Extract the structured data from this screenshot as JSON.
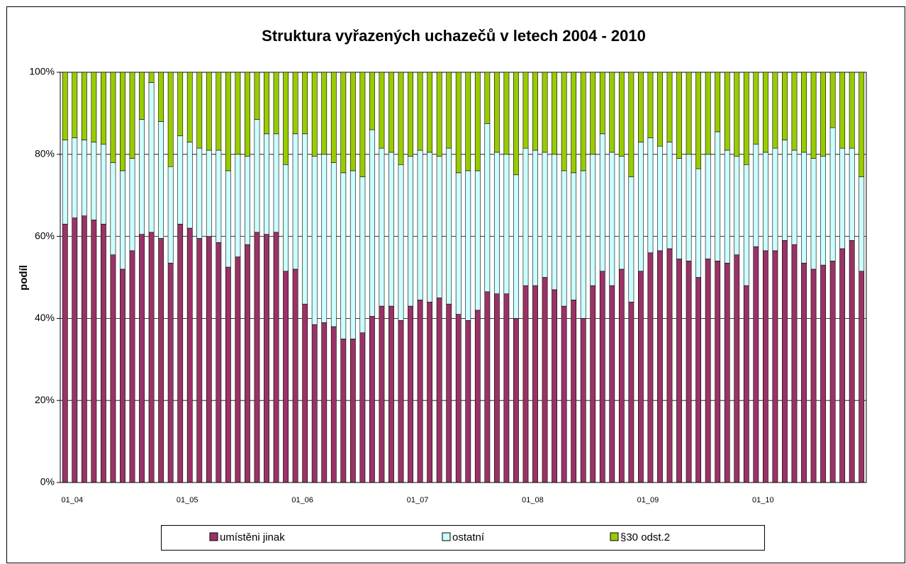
{
  "chart_data": {
    "type": "stacked_bar",
    "title": "Struktura vyřazených uchazečů v letech 2004 - 2010",
    "y_label": "podíl",
    "categories": [
      "01_04",
      null,
      null,
      null,
      null,
      null,
      null,
      null,
      null,
      null,
      null,
      null,
      "01_05",
      null,
      null,
      null,
      null,
      null,
      null,
      null,
      null,
      null,
      null,
      null,
      "01_06",
      null,
      null,
      null,
      null,
      null,
      null,
      null,
      null,
      null,
      null,
      null,
      "01_07",
      null,
      null,
      null,
      null,
      null,
      null,
      null,
      null,
      null,
      null,
      null,
      "01_08",
      null,
      null,
      null,
      null,
      null,
      null,
      null,
      null,
      null,
      null,
      null,
      "01_09",
      null,
      null,
      null,
      null,
      null,
      null,
      null,
      null,
      null,
      null,
      null,
      "01_10",
      null,
      null,
      null,
      null,
      null,
      null,
      null,
      null,
      null,
      null,
      null
    ],
    "series": [
      {
        "name": "umístěni jinak",
        "color": "#993366",
        "values": [
          63,
          64.5,
          65,
          64,
          63,
          55.5,
          52,
          56.5,
          60.5,
          61,
          59.5,
          53.5,
          63,
          62,
          59.5,
          60,
          58.5,
          52.5,
          55,
          58,
          61,
          60.5,
          61,
          51.5,
          52,
          43.5,
          38.5,
          39,
          38,
          35,
          35,
          36.5,
          40.5,
          43,
          43,
          39.5,
          43,
          44.5,
          44,
          45,
          43.5,
          41,
          39.5,
          42,
          46.5,
          46,
          46,
          40,
          48,
          48,
          50,
          47,
          43,
          44.5,
          40,
          48,
          51.5,
          48,
          52,
          44,
          51.5,
          56,
          56.5,
          57,
          54.5,
          54,
          50,
          54.5,
          54,
          53.5,
          55.5,
          48,
          57.5,
          56.5,
          56.5,
          59,
          58,
          53.5,
          52,
          53,
          54,
          57,
          59,
          51.5
        ]
      },
      {
        "name": "ostatní",
        "color": "#ccffff",
        "values": [
          20.5,
          19.5,
          18.5,
          19,
          19.5,
          22.5,
          24,
          22.5,
          28,
          36.5,
          28.5,
          23.5,
          21.5,
          21,
          22,
          21,
          22.5,
          23.5,
          25,
          21.5,
          27.5,
          24.5,
          24,
          26,
          33,
          41.5,
          41,
          41,
          40,
          40.5,
          41,
          38,
          45.5,
          38.5,
          37.5,
          38,
          36.5,
          36.5,
          36.5,
          34.5,
          38,
          34.5,
          36.5,
          34,
          41,
          34.5,
          34,
          35,
          33.5,
          33,
          30.5,
          33,
          33,
          31,
          36,
          32,
          33.5,
          32.5,
          27.5,
          30.5,
          31.5,
          28,
          25.5,
          26,
          24.5,
          26,
          26.5,
          25.5,
          31.5,
          27.5,
          24,
          29.5,
          25,
          24,
          25,
          24.5,
          23,
          27,
          27,
          26.5,
          32.5,
          24.5,
          22.5,
          23
        ]
      },
      {
        "name": "§30 odst.2",
        "color": "#99cc00",
        "values": [
          16.5,
          16,
          16.5,
          17,
          17.5,
          22,
          24,
          21,
          11.5,
          2.5,
          12,
          23,
          15.5,
          17,
          18.5,
          19,
          19,
          24,
          20,
          20.5,
          11.5,
          15,
          15,
          22.5,
          15,
          15,
          20.5,
          20,
          22,
          24.5,
          24,
          25.5,
          14,
          18.5,
          19.5,
          22.5,
          20.5,
          19,
          19.5,
          20.5,
          18.5,
          24.5,
          24,
          24,
          12.5,
          19.5,
          20,
          25,
          18.5,
          19,
          19.5,
          20,
          24,
          24.5,
          24,
          20,
          15,
          19.5,
          20.5,
          25.5,
          17,
          16,
          18,
          17,
          21,
          20,
          23.5,
          20,
          14.5,
          19,
          20.5,
          22.5,
          17.5,
          19.5,
          18.5,
          16.5,
          19,
          19.5,
          21,
          20.5,
          13.5,
          18.5,
          18.5,
          25.5
        ]
      }
    ],
    "ylim": [
      0,
      100
    ],
    "yticks": [
      {
        "value": 0,
        "label": "0%"
      },
      {
        "value": 20,
        "label": "20%"
      },
      {
        "value": 40,
        "label": "40%"
      },
      {
        "value": 60,
        "label": "60%"
      },
      {
        "value": 80,
        "label": "80%"
      },
      {
        "value": 100,
        "label": "100%"
      }
    ],
    "grid": true,
    "legend": "bottom"
  }
}
